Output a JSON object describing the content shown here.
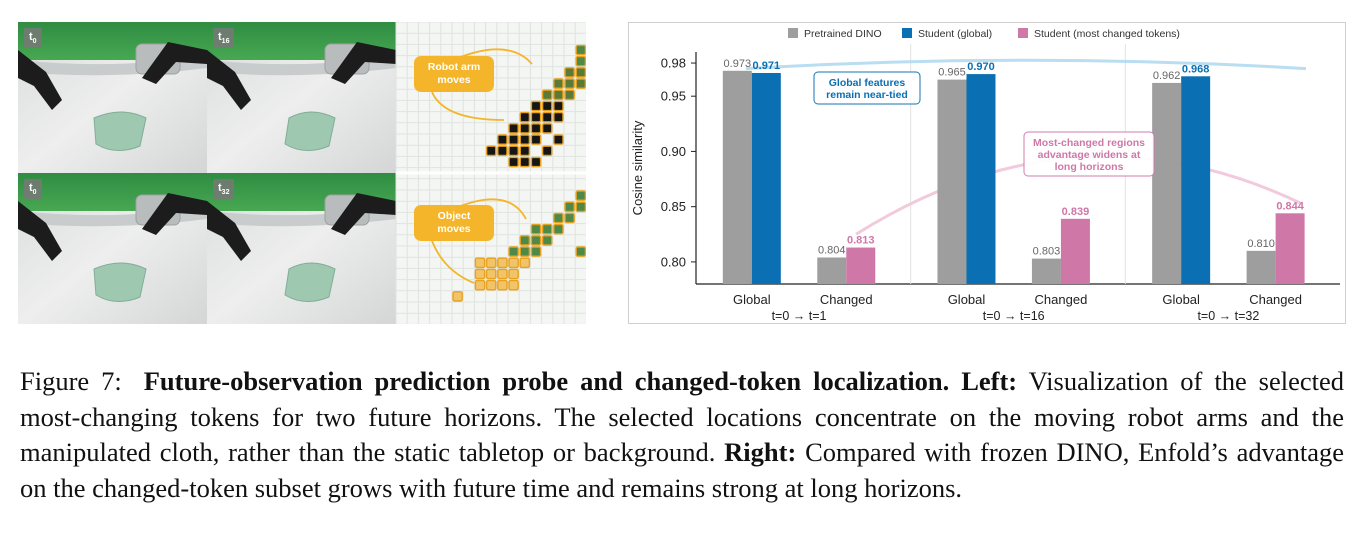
{
  "left_panel": {
    "frame_labels": [
      {
        "base": "t",
        "sub": "0"
      },
      {
        "base": "t",
        "sub": "16"
      },
      {
        "base": "t",
        "sub": "0"
      },
      {
        "base": "t",
        "sub": "32"
      }
    ],
    "callouts": [
      {
        "line1": "Robot arm",
        "line2": "moves"
      },
      {
        "line1": "Object",
        "line2": "moves"
      }
    ]
  },
  "chart_data": {
    "type": "bar",
    "ylabel": "Cosine similarity",
    "ylim": [
      0.78,
      0.99
    ],
    "yticks": [
      0.8,
      0.85,
      0.9,
      0.95,
      0.98
    ],
    "legend": [
      {
        "name": "Pretrained DINO",
        "color": "#9e9e9e"
      },
      {
        "name": "Student (global)",
        "color": "#0a6fb3"
      },
      {
        "name": "Student (most changed tokens)",
        "color": "#cf78a8"
      }
    ],
    "legend_position": "top",
    "groups": [
      {
        "horizon": "t=0 → t=1",
        "categories": [
          {
            "label": "Global",
            "bars": [
              {
                "series": 0,
                "value": 0.973
              },
              {
                "series": 1,
                "value": 0.971
              }
            ]
          },
          {
            "label": "Changed",
            "bars": [
              {
                "series": 0,
                "value": 0.804
              },
              {
                "series": 2,
                "value": 0.813
              }
            ]
          }
        ]
      },
      {
        "horizon": "t=0 → t=16",
        "categories": [
          {
            "label": "Global",
            "bars": [
              {
                "series": 0,
                "value": 0.965
              },
              {
                "series": 1,
                "value": 0.97
              }
            ]
          },
          {
            "label": "Changed",
            "bars": [
              {
                "series": 0,
                "value": 0.803
              },
              {
                "series": 2,
                "value": 0.839
              }
            ]
          }
        ]
      },
      {
        "horizon": "t=0 → t=32",
        "categories": [
          {
            "label": "Global",
            "bars": [
              {
                "series": 0,
                "value": 0.962
              },
              {
                "series": 1,
                "value": 0.968
              }
            ]
          },
          {
            "label": "Changed",
            "bars": [
              {
                "series": 0,
                "value": 0.81
              },
              {
                "series": 2,
                "value": 0.844
              }
            ]
          }
        ]
      }
    ],
    "annotations": [
      {
        "lines": [
          "Global features",
          "remain near-tied"
        ],
        "color": "#0a6fb3"
      },
      {
        "lines": [
          "Most-changed regions",
          "advantage widens at",
          "long horizons"
        ],
        "color": "#cf78a8"
      }
    ]
  },
  "caption": {
    "label": "Figure 7:",
    "title": "Future-observation prediction probe and changed-token localization.",
    "left_label": "Left:",
    "left_text": "Visualization of the selected most-changing tokens for two future horizons. The selected locations concentrate on the moving robot arms and the manipulated cloth, rather than the static tabletop or background.",
    "right_label": "Right:",
    "right_text": "Compared with frozen DINO, Enfold’s advantage on the changed-token subset grows with future time and remains strong at long horizons."
  },
  "colors": {
    "green_screen": "#3a9a4a",
    "table": "#e6e6e6",
    "callout": "#f5b52a",
    "token_orange": "#e8a21f",
    "token_green": "#4d8a4a"
  }
}
